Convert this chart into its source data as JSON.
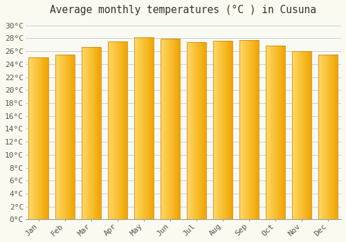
{
  "title": "Average monthly temperatures (°C ) in Cusuna",
  "months": [
    "Jan",
    "Feb",
    "Mar",
    "Apr",
    "May",
    "Jun",
    "Jul",
    "Aug",
    "Sep",
    "Oct",
    "Nov",
    "Dec"
  ],
  "temperatures": [
    25.0,
    25.5,
    26.7,
    27.5,
    28.2,
    27.9,
    27.4,
    27.6,
    27.7,
    26.9,
    26.0,
    25.5
  ],
  "bar_color_left": "#FFD966",
  "bar_color_right": "#F0A500",
  "bar_edge_color": "#C87800",
  "ylim": [
    0,
    31
  ],
  "yticks": [
    0,
    2,
    4,
    6,
    8,
    10,
    12,
    14,
    16,
    18,
    20,
    22,
    24,
    26,
    28,
    30
  ],
  "background_color": "#FAFAF0",
  "plot_bg_color": "#FAFAF5",
  "grid_color": "#CCCCCC",
  "title_fontsize": 10.5,
  "tick_fontsize": 8,
  "font_family": "monospace"
}
